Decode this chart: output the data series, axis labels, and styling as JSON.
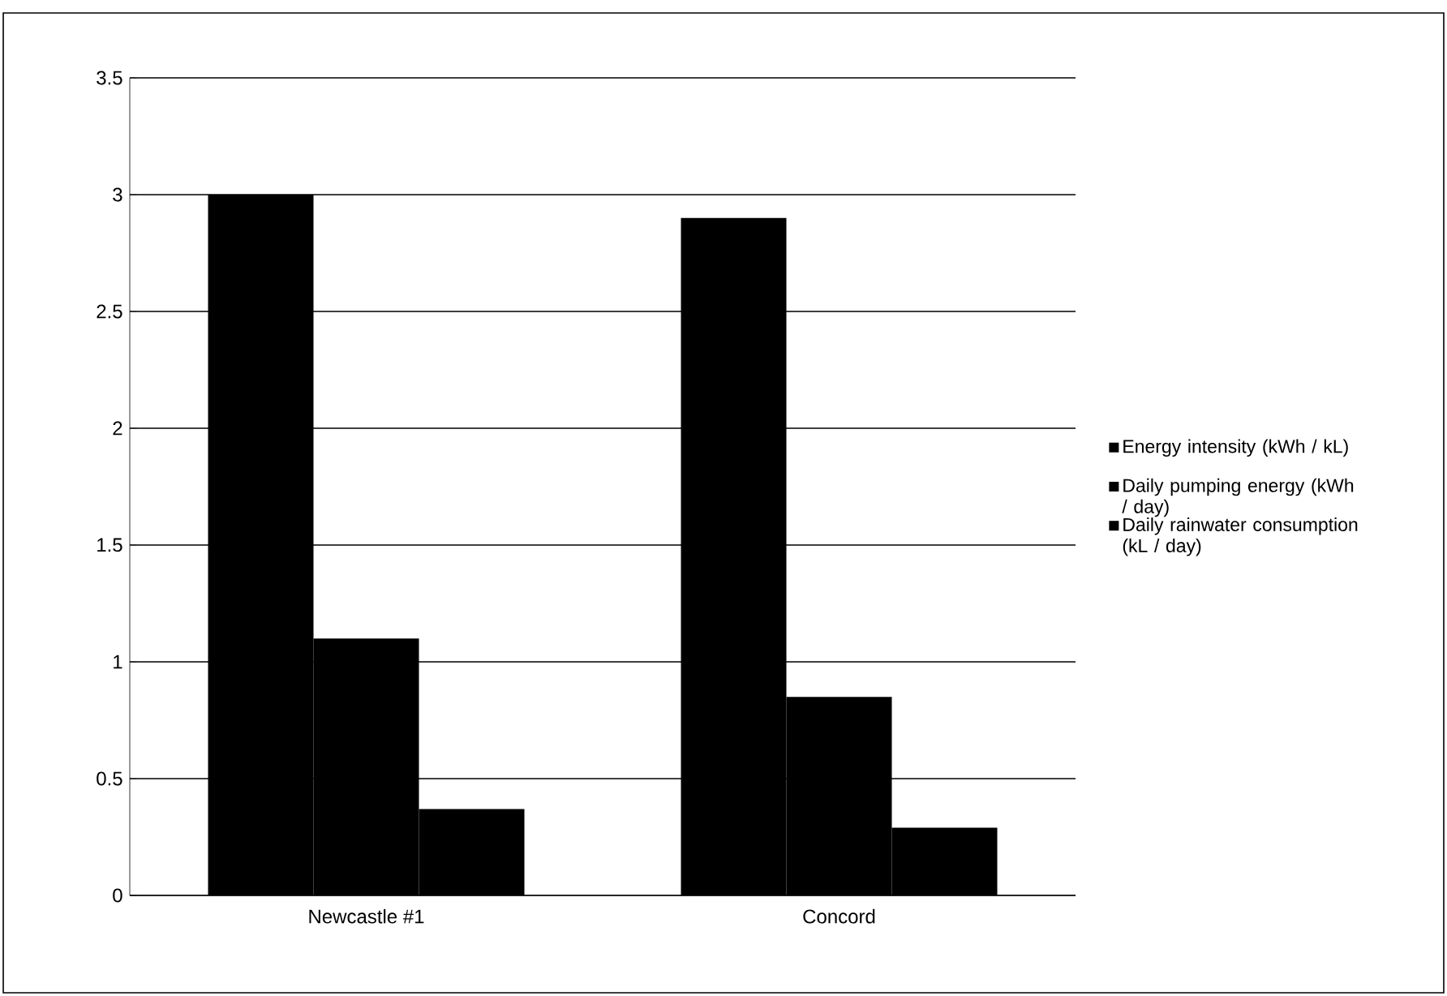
{
  "chart_data": {
    "type": "bar",
    "categories": [
      "Newcastle #1",
      "Concord"
    ],
    "series": [
      {
        "name": "Energy intensity (kWh / kL)",
        "color": "#000000",
        "values": [
          3.0,
          2.9
        ]
      },
      {
        "name": "Daily pumping energy (kWh / day)",
        "color": "#000000",
        "values": [
          1.1,
          0.85
        ]
      },
      {
        "name": "Daily rainwater consumption (kL / day)",
        "color": "#000000",
        "values": [
          0.37,
          0.29
        ]
      }
    ],
    "ylim": [
      0,
      3.5
    ],
    "yticks": [
      0,
      0.5,
      1,
      1.5,
      2,
      2.5,
      3,
      3.5
    ],
    "grid": "y",
    "legend": "right"
  }
}
